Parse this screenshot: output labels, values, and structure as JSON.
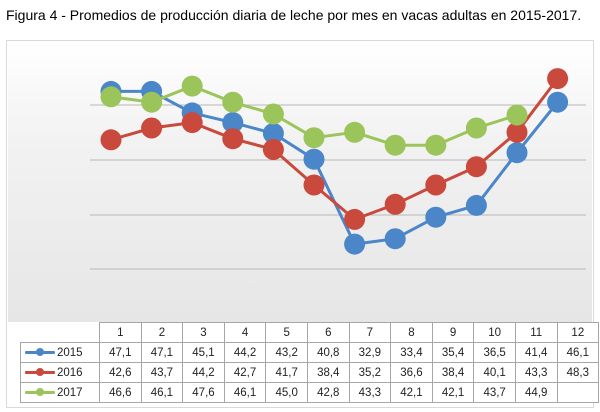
{
  "caption": "Figura 4 - Promedios de producción diaria de leche por mes en vacas adultas en 2015-2017.",
  "chart_data": {
    "type": "line",
    "title": "",
    "categories": [
      "1",
      "2",
      "3",
      "4",
      "5",
      "6",
      "7",
      "8",
      "9",
      "10",
      "11",
      "12"
    ],
    "series": [
      {
        "name": "2015",
        "color": "#4a86c8",
        "values": [
          47.1,
          47.1,
          45.1,
          44.2,
          43.2,
          40.8,
          32.9,
          33.4,
          35.4,
          36.5,
          41.4,
          46.1
        ],
        "labels": [
          "47,1",
          "47,1",
          "45,1",
          "44,2",
          "43,2",
          "40,8",
          "32,9",
          "33,4",
          "35,4",
          "36,5",
          "41,4",
          "46,1"
        ]
      },
      {
        "name": "2016",
        "color": "#c94a3c",
        "values": [
          42.6,
          43.7,
          44.2,
          42.7,
          41.7,
          38.4,
          35.2,
          36.6,
          38.4,
          40.1,
          43.3,
          48.3
        ],
        "labels": [
          "42,6",
          "43,7",
          "44,2",
          "42,7",
          "41,7",
          "38,4",
          "35,2",
          "36,6",
          "38,4",
          "40,1",
          "43,3",
          "48,3"
        ]
      },
      {
        "name": "2017",
        "color": "#9bc55a",
        "values": [
          46.6,
          46.1,
          47.6,
          46.1,
          45.0,
          42.8,
          43.3,
          42.1,
          42.1,
          43.7,
          44.9,
          null
        ],
        "labels": [
          "46,6",
          "46,1",
          "47,6",
          "46,1",
          "45,0",
          "42,8",
          "43,3",
          "42,1",
          "42,1",
          "43,7",
          "44,9",
          ""
        ]
      }
    ],
    "legend": "data-table",
    "grid": true,
    "data_table": true
  }
}
